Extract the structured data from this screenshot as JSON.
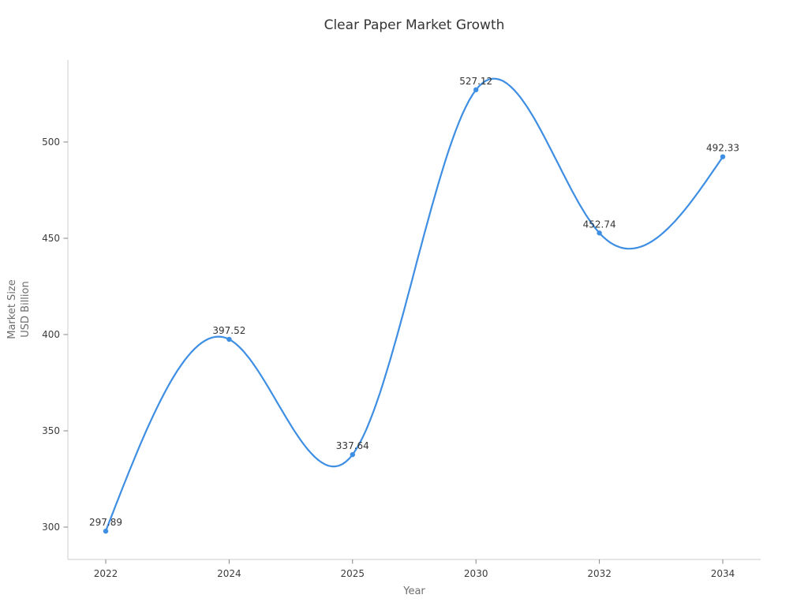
{
  "chart_data": {
    "type": "line",
    "title": "Clear Paper Market Growth",
    "xlabel": "Year",
    "ylabel_lines": [
      "Market Size",
      "USD Billion"
    ],
    "categories": [
      "2022",
      "2024",
      "2025",
      "2030",
      "2032",
      "2034"
    ],
    "series": [
      {
        "name": "Market Size (USD Billion)",
        "values": [
          297.89,
          397.52,
          337.64,
          527.12,
          452.74,
          492.33
        ],
        "point_labels": [
          "297.89",
          "397.52",
          "337.64",
          "527.12",
          "452.74",
          "492.33"
        ]
      }
    ],
    "yticks": [
      300,
      350,
      400,
      450,
      500
    ],
    "ylim": [
      283.2,
      542.6
    ],
    "grid": false,
    "legend": false,
    "smooth": true,
    "marker": "circle",
    "colors": {
      "line": "#3e8ee3",
      "marker": "#3e8ee3",
      "spine": "#d6d6d6",
      "tick_mark": "#848484",
      "tick_label": "#3c3c3c",
      "axis_label": "#6e6e6e",
      "title": "#353535",
      "annotation": "#333333",
      "background": "#ffffff"
    }
  }
}
